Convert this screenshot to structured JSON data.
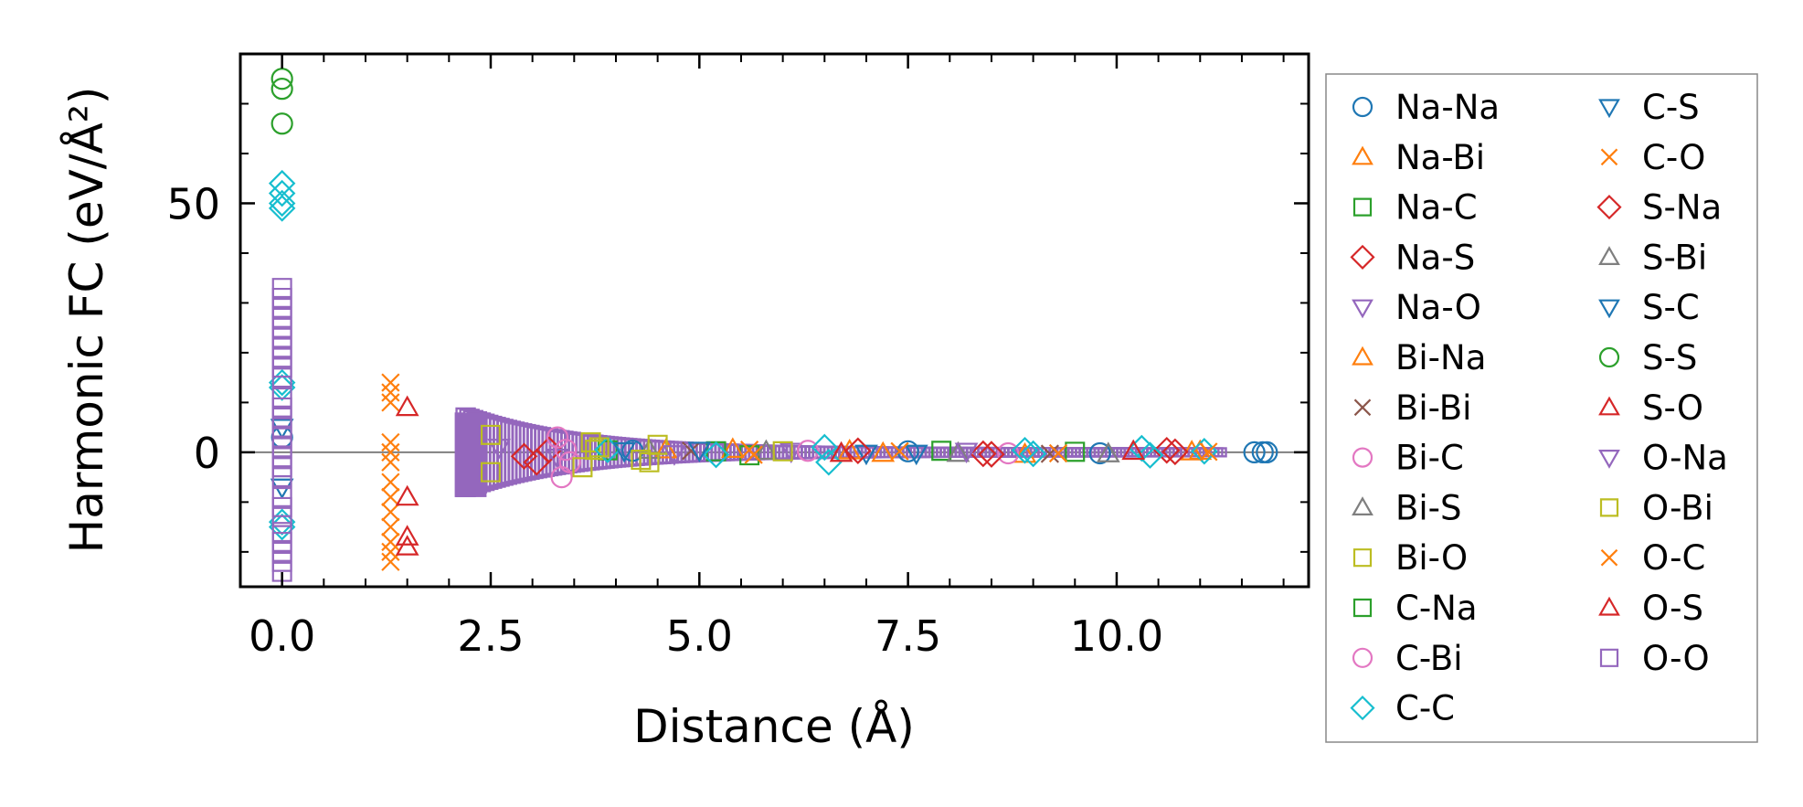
{
  "chart_data": {
    "type": "scatter",
    "title": "",
    "xlabel": "Distance (Å)",
    "ylabel": "Harmonic FC (eV/Å²)",
    "xlim": [
      -0.5,
      12.3
    ],
    "ylim": [
      -27,
      80
    ],
    "xticks": [
      0.0,
      2.5,
      5.0,
      7.5,
      10.0
    ],
    "xtick_labels": [
      "0.0",
      "2.5",
      "5.0",
      "7.5",
      "10.0"
    ],
    "yticks": [
      0,
      50
    ],
    "ytick_labels": [
      "0",
      "50"
    ],
    "zero_line": 0,
    "legend_position": "outside-right",
    "series": [
      {
        "name": "Na-Na",
        "color": "#1f77b4",
        "marker": "circle",
        "points": [
          [
            0,
            3
          ],
          [
            11.65,
            0
          ],
          [
            11.75,
            0
          ],
          [
            11.8,
            0
          ],
          [
            4.2,
            0.3
          ],
          [
            7.5,
            0.2
          ],
          [
            9.8,
            -0.2
          ]
        ]
      },
      {
        "name": "Na-Bi",
        "color": "#ff7f0e",
        "marker": "triangle-up",
        "points": [
          [
            4.6,
            0.5
          ],
          [
            6.8,
            0.3
          ],
          [
            8.9,
            -0.4
          ],
          [
            11.0,
            0.2
          ]
        ]
      },
      {
        "name": "Na-C",
        "color": "#2ca02c",
        "marker": "square",
        "points": [
          [
            3.9,
            0.4
          ],
          [
            5.6,
            -0.6
          ],
          [
            7.9,
            0.3
          ]
        ]
      },
      {
        "name": "Na-S",
        "color": "#d62728",
        "marker": "diamond",
        "points": [
          [
            2.9,
            -0.8
          ],
          [
            3.05,
            -2
          ],
          [
            3.2,
            0.5
          ],
          [
            8.4,
            -0.3
          ],
          [
            10.6,
            0.4
          ]
        ]
      },
      {
        "name": "Na-O",
        "color": "#9467bd",
        "marker": "triangle-down",
        "points": [
          [
            2.6,
            1
          ],
          [
            3.3,
            -1
          ],
          [
            6.1,
            0.2
          ]
        ]
      },
      {
        "name": "Bi-Na",
        "color": "#ff7f0e",
        "marker": "triangle-up",
        "points": [
          [
            5.4,
            0.6
          ],
          [
            7.2,
            -0.2
          ],
          [
            10.9,
            0.1
          ]
        ]
      },
      {
        "name": "Bi-Bi",
        "color": "#8c564b",
        "marker": "x",
        "points": [
          [
            4.9,
            0.3
          ],
          [
            9.2,
            -0.3
          ]
        ]
      },
      {
        "name": "Bi-C",
        "color": "#e377c2",
        "marker": "circle",
        "points": [
          [
            3.3,
            3
          ],
          [
            3.35,
            -5
          ],
          [
            3.4,
            0.5
          ],
          [
            3.45,
            -2
          ]
        ]
      },
      {
        "name": "Bi-S",
        "color": "#7f7f7f",
        "marker": "triangle-up",
        "points": [
          [
            4.4,
            0.4
          ],
          [
            8.1,
            -0.2
          ]
        ]
      },
      {
        "name": "Bi-O",
        "color": "#bcbd22",
        "marker": "square",
        "points": [
          [
            2.5,
            3.5
          ],
          [
            2.5,
            -4
          ],
          [
            3.6,
            -3
          ],
          [
            3.7,
            2
          ],
          [
            3.75,
            0.5
          ],
          [
            4.4,
            -2
          ],
          [
            4.5,
            1.5
          ]
        ]
      },
      {
        "name": "C-Na",
        "color": "#2ca02c",
        "marker": "square",
        "points": [
          [
            5.2,
            0.2
          ],
          [
            9.5,
            0.1
          ]
        ]
      },
      {
        "name": "C-Bi",
        "color": "#e377c2",
        "marker": "circle",
        "points": [
          [
            6.3,
            0.3
          ],
          [
            8.7,
            -0.2
          ]
        ]
      },
      {
        "name": "C-C",
        "color": "#17becf",
        "marker": "diamond",
        "points": [
          [
            0,
            54
          ],
          [
            0,
            52
          ],
          [
            0,
            50
          ],
          [
            0,
            49
          ],
          [
            0,
            14
          ],
          [
            0,
            13
          ],
          [
            0,
            -14
          ],
          [
            0,
            -15
          ],
          [
            3.9,
            0.5
          ],
          [
            5.2,
            -0.5
          ],
          [
            6.5,
            1
          ],
          [
            6.55,
            -2
          ],
          [
            8.9,
            0.4
          ],
          [
            9.0,
            -0.3
          ],
          [
            10.3,
            0.8
          ],
          [
            10.4,
            -0.6
          ],
          [
            11.05,
            0.2
          ]
        ]
      },
      {
        "name": "C-S",
        "color": "#1f77b4",
        "marker": "triangle-down",
        "points": [
          [
            0,
            5
          ],
          [
            0,
            -7
          ],
          [
            4.1,
            0.3
          ],
          [
            7.0,
            -0.2
          ]
        ]
      },
      {
        "name": "C-O",
        "color": "#ff7f0e",
        "marker": "x",
        "points": [
          [
            1.3,
            14
          ],
          [
            1.3,
            12
          ],
          [
            1.3,
            10
          ],
          [
            1.3,
            2
          ],
          [
            1.3,
            0
          ],
          [
            1.3,
            -2
          ],
          [
            1.3,
            -6
          ],
          [
            1.3,
            -9
          ],
          [
            1.3,
            -12
          ],
          [
            1.3,
            -15
          ],
          [
            1.3,
            -18
          ],
          [
            1.3,
            -20
          ],
          [
            1.3,
            -22
          ]
        ]
      },
      {
        "name": "S-Na",
        "color": "#d62728",
        "marker": "diamond",
        "points": [
          [
            6.9,
            0.3
          ],
          [
            8.5,
            -0.4
          ],
          [
            10.7,
            0.1
          ]
        ]
      },
      {
        "name": "S-Bi",
        "color": "#7f7f7f",
        "marker": "triangle-up",
        "points": [
          [
            5.8,
            0.2
          ],
          [
            9.9,
            -0.3
          ]
        ]
      },
      {
        "name": "S-C",
        "color": "#1f77b4",
        "marker": "triangle-down",
        "points": [
          [
            5.0,
            0.4
          ],
          [
            7.6,
            -0.2
          ]
        ]
      },
      {
        "name": "S-S",
        "color": "#2ca02c",
        "marker": "circle",
        "points": [
          [
            0,
            75
          ],
          [
            0,
            73
          ],
          [
            0,
            66
          ]
        ]
      },
      {
        "name": "S-O",
        "color": "#d62728",
        "marker": "triangle-up",
        "points": [
          [
            1.5,
            9
          ],
          [
            1.5,
            -9
          ],
          [
            1.5,
            -17
          ],
          [
            1.5,
            -19
          ]
        ]
      },
      {
        "name": "O-Na",
        "color": "#9467bd",
        "marker": "triangle-down",
        "points": [
          [
            4.7,
            -0.3
          ],
          [
            8.2,
            0.2
          ]
        ]
      },
      {
        "name": "O-Bi",
        "color": "#bcbd22",
        "marker": "square",
        "points": [
          [
            3.8,
            1
          ],
          [
            4.3,
            -1.5
          ],
          [
            6.0,
            0.2
          ]
        ]
      },
      {
        "name": "O-C",
        "color": "#ff7f0e",
        "marker": "x",
        "points": [
          [
            5.6,
            0.5
          ],
          [
            5.65,
            -0.5
          ],
          [
            7.4,
            0.2
          ],
          [
            9.3,
            -0.2
          ],
          [
            11.1,
            0.1
          ]
        ]
      },
      {
        "name": "O-S",
        "color": "#d62728",
        "marker": "triangle-up",
        "points": [
          [
            6.7,
            -0.2
          ],
          [
            10.2,
            0.2
          ]
        ]
      },
      {
        "name": "O-O",
        "color": "#9467bd",
        "marker": "square",
        "points": [
          [
            0,
            33
          ],
          [
            0,
            31
          ],
          [
            0,
            29
          ],
          [
            0,
            27
          ],
          [
            0,
            25
          ],
          [
            0,
            23
          ],
          [
            0,
            21
          ],
          [
            0,
            19
          ],
          [
            0,
            17
          ],
          [
            0,
            15
          ],
          [
            0,
            11
          ],
          [
            0,
            9
          ],
          [
            0,
            7
          ],
          [
            0,
            5
          ],
          [
            0,
            3
          ],
          [
            0,
            1
          ],
          [
            0,
            -1
          ],
          [
            0,
            -3
          ],
          [
            0,
            -5
          ],
          [
            0,
            -9
          ],
          [
            0,
            -11
          ],
          [
            0,
            -13
          ],
          [
            0,
            -16
          ],
          [
            0,
            -18
          ],
          [
            0,
            -20
          ],
          [
            0,
            -22
          ],
          [
            0,
            -24
          ]
        ]
      }
    ],
    "dense_band": {
      "color": "#9467bd",
      "x_start": 2.2,
      "x_end": 11.2,
      "amplitude_start": 8,
      "amplitude_decay": 0.75
    }
  }
}
